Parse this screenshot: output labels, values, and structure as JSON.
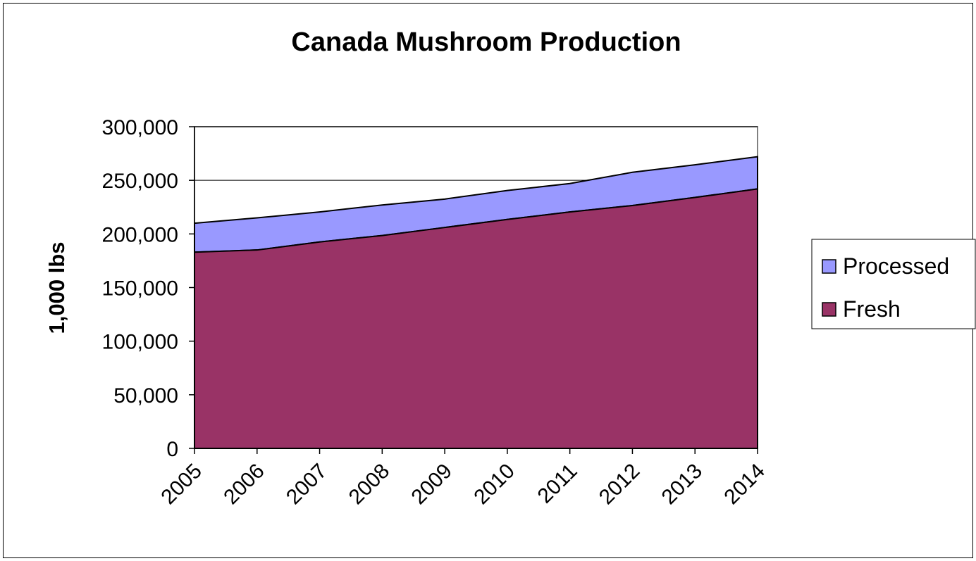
{
  "chart_data": {
    "type": "area",
    "stacked": true,
    "title": "Canada Mushroom Production",
    "xlabel": "",
    "ylabel": "1,000 lbs",
    "categories": [
      "2005",
      "2006",
      "2007",
      "2008",
      "2009",
      "2010",
      "2011",
      "2012",
      "2013",
      "2014"
    ],
    "ylim": [
      0,
      300000
    ],
    "yticks": [
      0,
      50000,
      100000,
      150000,
      200000,
      250000,
      300000
    ],
    "ytick_labels": [
      "0",
      "50,000",
      "100,000",
      "150,000",
      "200,000",
      "250,000",
      "300,000"
    ],
    "grid": true,
    "legend_position": "right",
    "series": [
      {
        "name": "Fresh",
        "color": "#993366",
        "values": [
          183000,
          185000,
          192500,
          198500,
          206000,
          213500,
          220500,
          226500,
          234000,
          242000
        ]
      },
      {
        "name": "Processed",
        "color": "#9999ff",
        "values": [
          27000,
          30000,
          28000,
          28500,
          26500,
          27000,
          26500,
          31000,
          30500,
          30000
        ]
      }
    ]
  }
}
